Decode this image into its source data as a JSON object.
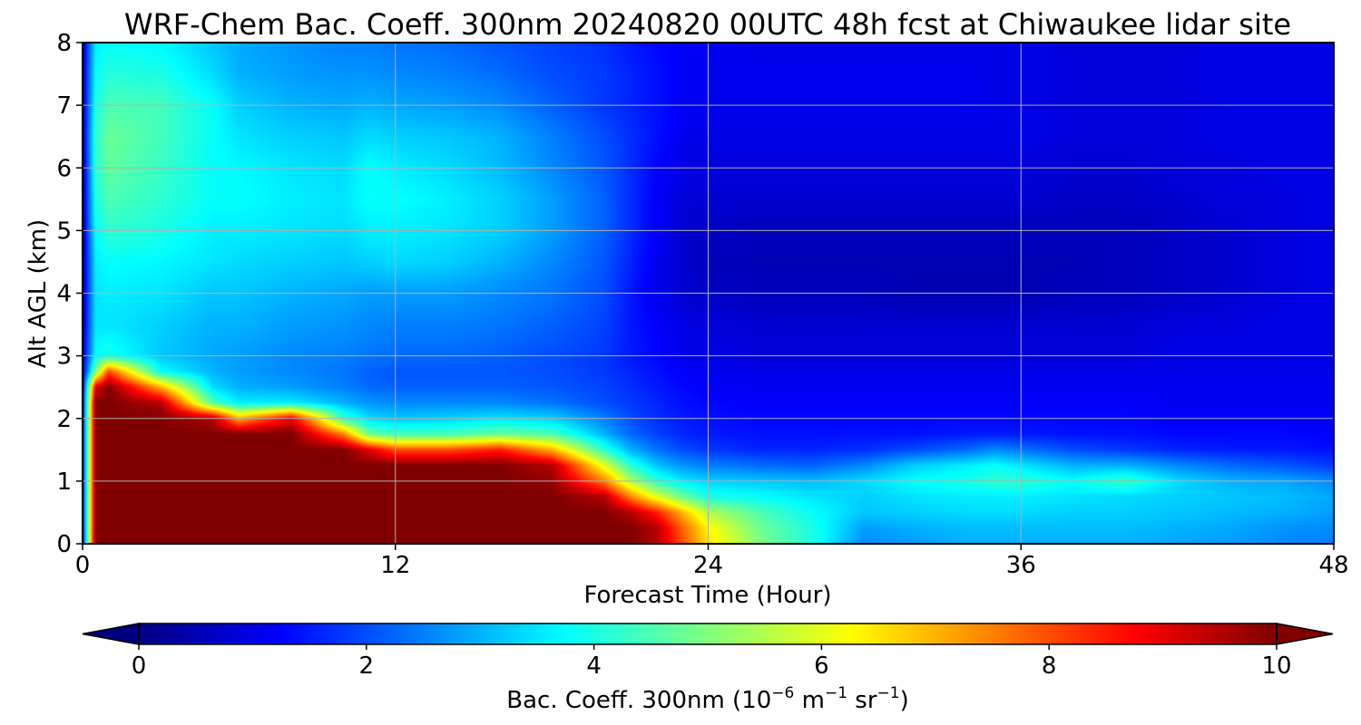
{
  "chart_data": {
    "type": "heatmap",
    "title": "WRF-Chem Bac. Coeff. 300nm  20240820 00UTC 48h fcst at Chiwaukee lidar site",
    "xlabel": "Forecast Time (Hour)",
    "ylabel": "Alt AGL (km)",
    "xlim": [
      0,
      48
    ],
    "ylim": [
      0,
      8
    ],
    "xticks": [
      0,
      12,
      24,
      36,
      48
    ],
    "xtick_labels": [
      "0",
      "12",
      "24",
      "36",
      "48"
    ],
    "yticks": [
      0,
      1,
      2,
      3,
      4,
      5,
      6,
      7,
      8
    ],
    "ytick_labels": [
      "0",
      "1",
      "2",
      "3",
      "4",
      "5",
      "6",
      "7",
      "8"
    ],
    "grid": true,
    "colormap": "jet",
    "colorbar": {
      "orientation": "horizontal",
      "extend": "both",
      "vmin": 0,
      "vmax": 10,
      "ticks": [
        0,
        2,
        4,
        6,
        8,
        10
      ],
      "tick_labels": [
        "0",
        "2",
        "4",
        "6",
        "8",
        "10"
      ],
      "label_text": "Bac. Coeff. 300nm  (10",
      "label_exp1": "−6",
      "label_mid": " m",
      "label_exp2": "−1",
      "label_mid2": " sr",
      "label_exp3": "−1",
      "label_end": ")"
    },
    "x": [
      0,
      0.5,
      1,
      3,
      5,
      6,
      8,
      10,
      11,
      12,
      14,
      16,
      18,
      20,
      21,
      22,
      23,
      24,
      26,
      28,
      30,
      32,
      34,
      35,
      36,
      38,
      40,
      42,
      44,
      46,
      48
    ],
    "y": [
      0,
      0.25,
      0.5,
      0.75,
      1,
      1.25,
      1.5,
      1.75,
      2,
      2.25,
      2.5,
      2.75,
      3,
      3.5,
      4,
      4.5,
      5,
      5.5,
      6,
      6.5,
      7,
      7.5,
      8
    ],
    "z": [
      [
        1.2,
        10,
        10,
        10,
        10,
        10,
        10,
        10,
        10,
        10,
        10,
        10,
        10,
        10,
        10,
        9.5,
        8,
        6.5,
        5,
        4,
        2.6,
        2.8,
        3,
        3,
        3,
        3,
        3,
        2.9,
        2.8,
        2.6,
        2.5
      ],
      [
        1.2,
        10,
        10,
        10,
        10,
        10,
        10,
        10,
        10,
        10,
        10,
        10,
        10,
        10,
        10,
        9.5,
        7.8,
        6.3,
        4.8,
        4,
        2.8,
        3,
        3.1,
        3.1,
        3.1,
        3.1,
        3.1,
        3,
        2.9,
        2.7,
        2.6
      ],
      [
        1.2,
        10,
        10,
        10,
        10,
        10,
        10,
        10,
        10,
        10,
        10,
        10,
        10,
        10,
        9.5,
        8.5,
        7,
        5.5,
        4.5,
        3.8,
        3.2,
        3.3,
        3.4,
        3.4,
        3.4,
        3.3,
        3.3,
        3.2,
        3.1,
        3,
        2.8
      ],
      [
        1.2,
        10,
        10,
        10,
        10,
        10,
        10,
        10,
        10,
        10,
        10,
        10,
        10,
        9.5,
        7.5,
        6,
        4.8,
        4,
        3.8,
        3.5,
        3.3,
        3.5,
        3.6,
        3.6,
        3.6,
        3.5,
        3.4,
        3.3,
        3.2,
        3.1,
        2.9
      ],
      [
        1.2,
        10,
        10,
        10,
        10,
        10,
        10,
        10,
        10,
        10,
        10,
        10,
        9.8,
        7.5,
        5.5,
        4.2,
        3.6,
        3.3,
        3.2,
        3.1,
        3.4,
        3.8,
        4,
        4.2,
        4.2,
        3.8,
        4.3,
        3.4,
        3,
        2.9,
        2.6
      ],
      [
        1.2,
        10,
        10,
        10,
        10,
        10,
        10,
        10,
        10,
        10,
        10,
        10,
        9.5,
        6,
        4.2,
        3.2,
        2.7,
        2.5,
        2.3,
        2.2,
        2.6,
        3.3,
        3.6,
        3.8,
        3.5,
        3,
        3,
        2.6,
        2.3,
        2.1,
        1.8
      ],
      [
        1.2,
        10,
        10,
        10,
        10,
        10,
        10,
        10,
        9,
        8,
        8,
        8.5,
        7,
        4.2,
        3,
        2.4,
        2,
        1.8,
        1.6,
        1.6,
        1.7,
        2,
        2.3,
        2.6,
        2.4,
        2,
        1.8,
        1.6,
        1.5,
        1.5,
        1.4
      ],
      [
        1.2,
        10,
        10,
        10,
        10,
        10,
        10,
        7.5,
        4.8,
        4.4,
        4.4,
        4.8,
        4.5,
        3,
        2.3,
        1.9,
        1.6,
        1.5,
        1.4,
        1.4,
        1.4,
        1.4,
        1.5,
        1.5,
        1.5,
        1.4,
        1.4,
        1.3,
        1.3,
        1.3,
        1.2
      ],
      [
        1.2,
        10,
        10,
        10,
        9.5,
        7,
        9,
        4.3,
        3.4,
        3.2,
        3.3,
        3.5,
        3.3,
        2.5,
        2,
        1.7,
        1.5,
        1.4,
        1.3,
        1.3,
        1.3,
        1.3,
        1.3,
        1.3,
        1.3,
        1.3,
        1.3,
        1.2,
        1.2,
        1.2,
        1.2
      ],
      [
        1.1,
        10,
        10,
        9.5,
        4.5,
        3.6,
        3.6,
        3,
        2.7,
        2.6,
        2.6,
        2.6,
        2.4,
        2,
        1.8,
        1.6,
        1.4,
        1.3,
        1.2,
        1.2,
        1.2,
        1.2,
        1.2,
        1.2,
        1.2,
        1.2,
        1.2,
        1.1,
        1.1,
        1.1,
        1.1
      ],
      [
        1,
        9,
        10,
        7,
        3.4,
        3,
        2.8,
        2.5,
        2.3,
        2.2,
        2.2,
        2.2,
        2.1,
        1.9,
        1.7,
        1.5,
        1.3,
        1.2,
        1.1,
        1.1,
        1.1,
        1.1,
        1.1,
        1.1,
        1.1,
        1.1,
        1.1,
        1.1,
        1.1,
        1.1,
        1.1
      ],
      [
        1,
        5,
        8,
        3.8,
        3,
        2.8,
        2.6,
        2.4,
        2.2,
        2.1,
        2.1,
        2.1,
        2,
        1.8,
        1.6,
        1.4,
        1.2,
        1.1,
        1,
        1,
        1,
        1,
        1,
        1,
        1,
        1,
        1,
        1,
        1,
        1,
        1
      ],
      [
        0.9,
        3.8,
        4,
        3.2,
        2.9,
        2.8,
        2.6,
        2.5,
        2.4,
        2.3,
        2.3,
        2.2,
        2,
        1.8,
        1.5,
        1.3,
        1.1,
        1,
        0.9,
        0.9,
        0.9,
        0.9,
        0.9,
        0.9,
        0.9,
        0.9,
        0.9,
        1,
        1,
        1,
        1
      ],
      [
        0.8,
        3.5,
        3.5,
        3.3,
        3,
        3,
        2.8,
        2.7,
        2.6,
        2.5,
        2.5,
        2.4,
        2.2,
        1.9,
        1.5,
        1.2,
        1,
        0.9,
        0.8,
        0.8,
        0.8,
        0.8,
        0.8,
        0.8,
        0.8,
        0.8,
        0.8,
        0.9,
        0.9,
        1,
        1
      ],
      [
        0.7,
        3.5,
        3.6,
        3.5,
        3.2,
        3.2,
        3,
        2.9,
        2.8,
        2.8,
        2.8,
        2.6,
        2.4,
        2,
        1.5,
        1.1,
        0.8,
        0.7,
        0.6,
        0.6,
        0.6,
        0.5,
        0.5,
        0.5,
        0.5,
        0.6,
        0.6,
        0.7,
        0.8,
        0.9,
        1
      ],
      [
        0.7,
        3.6,
        3.8,
        3.7,
        3.5,
        3.4,
        3.3,
        3.2,
        3.3,
        3.4,
        3.3,
        3,
        2.6,
        2.1,
        1.6,
        1.1,
        0.8,
        0.6,
        0.5,
        0.5,
        0.5,
        0.5,
        0.5,
        0.5,
        0.5,
        0.5,
        0.6,
        0.7,
        0.8,
        0.9,
        1
      ],
      [
        0.7,
        3.8,
        4.2,
        4,
        3.6,
        3.6,
        3.5,
        3.4,
        3.6,
        3.6,
        3.5,
        3.3,
        2.8,
        2.2,
        1.7,
        1.2,
        0.8,
        0.7,
        0.6,
        0.6,
        0.6,
        0.6,
        0.6,
        0.6,
        0.6,
        0.6,
        0.6,
        0.7,
        0.8,
        0.9,
        1
      ],
      [
        0.7,
        4,
        4.5,
        4.2,
        3.8,
        3.8,
        3.6,
        3.5,
        3.8,
        3.8,
        3.6,
        3.3,
        2.8,
        2.2,
        1.7,
        1.2,
        0.9,
        0.8,
        0.8,
        0.8,
        0.8,
        0.8,
        0.8,
        0.8,
        0.8,
        0.7,
        0.7,
        0.8,
        0.9,
        0.9,
        1
      ],
      [
        0.7,
        4.2,
        4.7,
        4.3,
        3.8,
        3.7,
        3.5,
        3.4,
        3.8,
        3.6,
        3.4,
        3.1,
        2.6,
        2.1,
        1.7,
        1.3,
        1,
        0.9,
        0.9,
        0.9,
        0.9,
        0.9,
        0.9,
        0.9,
        0.9,
        0.8,
        0.8,
        0.9,
        0.9,
        1,
        1
      ],
      [
        0.8,
        4.2,
        4.8,
        4.4,
        3.8,
        3.5,
        3.3,
        3.2,
        3.4,
        3.3,
        3.2,
        3,
        2.5,
        2,
        1.7,
        1.4,
        1.1,
        1,
        1,
        1,
        1,
        1,
        1,
        1,
        1,
        0.9,
        0.9,
        0.9,
        1,
        1,
        1
      ],
      [
        0.8,
        4,
        4.5,
        4.4,
        3.8,
        3.3,
        3,
        2.9,
        3,
        2.9,
        2.8,
        2.6,
        2.2,
        1.8,
        1.6,
        1.4,
        1.2,
        1.1,
        1.1,
        1.1,
        1.1,
        1.1,
        1.1,
        1,
        1,
        0.9,
        0.9,
        0.9,
        1,
        1,
        1
      ],
      [
        0.8,
        3.8,
        4.1,
        4,
        3.4,
        3,
        2.8,
        2.7,
        2.7,
        2.6,
        2.5,
        2.3,
        2,
        1.8,
        1.6,
        1.4,
        1.2,
        1.1,
        1.1,
        1.1,
        1.1,
        1.1,
        1.1,
        1,
        1,
        0.9,
        0.9,
        0.9,
        1,
        1,
        1
      ],
      [
        0.8,
        3.6,
        3.8,
        3.7,
        3.2,
        2.9,
        2.7,
        2.5,
        2.5,
        2.4,
        2.3,
        2.1,
        1.9,
        1.7,
        1.5,
        1.3,
        1.2,
        1.1,
        1,
        1,
        1,
        1,
        1,
        1,
        1,
        0.9,
        0.9,
        0.9,
        1,
        1,
        1
      ]
    ]
  }
}
